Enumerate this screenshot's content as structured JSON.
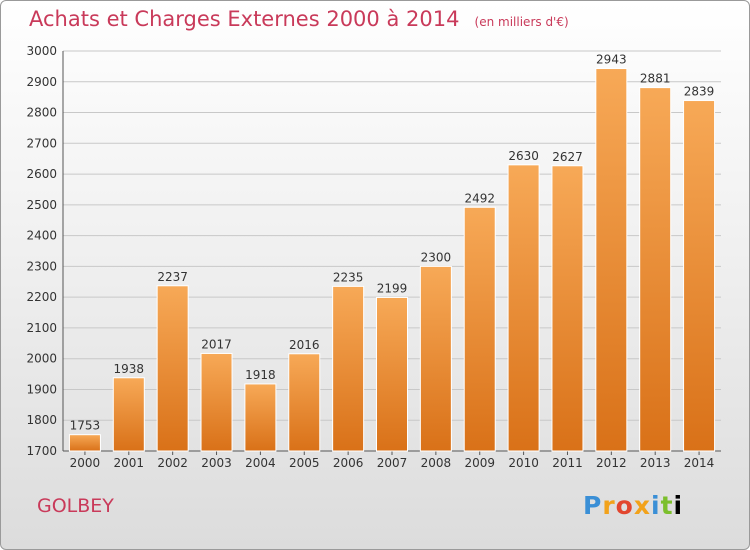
{
  "header": {
    "title": "Achats et Charges Externes 2000 à 2014",
    "unit": "(en milliers d'€)"
  },
  "footer": {
    "city": "GOLBEY",
    "logo": "Proxiti",
    "logo_icon": "proxiti-logo-icon"
  },
  "colors": {
    "bar_light": "#f7a957",
    "bar_dark": "#d97118",
    "title": "#c93a5a"
  },
  "chart_data": {
    "type": "bar",
    "title": "Achats et Charges Externes 2000 à 2014",
    "subtitle": "(en milliers d'€)",
    "categories": [
      "2000",
      "2001",
      "2002",
      "2003",
      "2004",
      "2005",
      "2006",
      "2007",
      "2008",
      "2009",
      "2010",
      "2011",
      "2012",
      "2013",
      "2014"
    ],
    "values": [
      1753,
      1938,
      2237,
      2017,
      1918,
      2016,
      2235,
      2199,
      2300,
      2492,
      2630,
      2627,
      2943,
      2881,
      2839
    ],
    "ylim": [
      1700,
      3000
    ],
    "yticks": [
      1700,
      1800,
      1900,
      2000,
      2100,
      2200,
      2300,
      2400,
      2500,
      2600,
      2700,
      2800,
      2900,
      3000
    ],
    "grid": true,
    "xlabel": "",
    "ylabel": ""
  }
}
